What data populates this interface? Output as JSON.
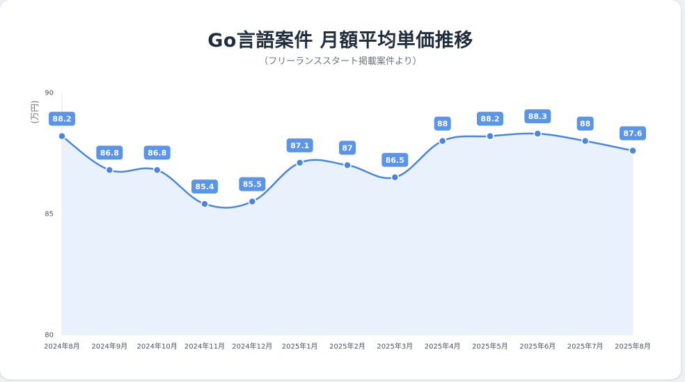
{
  "title": "Go言語案件 月額平均単価推移",
  "subtitle": "（フリーランススタート掲載案件より）",
  "chart_data": {
    "type": "area",
    "title": "Go言語案件 月額平均単価推移",
    "subtitle": "（フリーランススタート掲載案件より）",
    "ylabel": "(万円)",
    "xlabel": "",
    "ylim": [
      80,
      90
    ],
    "yticks": [
      80,
      85,
      90
    ],
    "grid": false,
    "smooth": true,
    "line_color": "#4a86e0",
    "fill_color": "#e9f1fc",
    "label_color": "#5b95e8",
    "categories": [
      "2024年8月",
      "2024年9月",
      "2024年10月",
      "2024年11月",
      "2024年12月",
      "2025年1月",
      "2025年2月",
      "2025年3月",
      "2025年4月",
      "2025年5月",
      "2025年6月",
      "2025年7月",
      "2025年8月"
    ],
    "values": [
      88.2,
      86.8,
      86.8,
      85.4,
      85.5,
      87.1,
      87,
      86.5,
      88,
      88.2,
      88.3,
      88,
      87.6
    ]
  }
}
